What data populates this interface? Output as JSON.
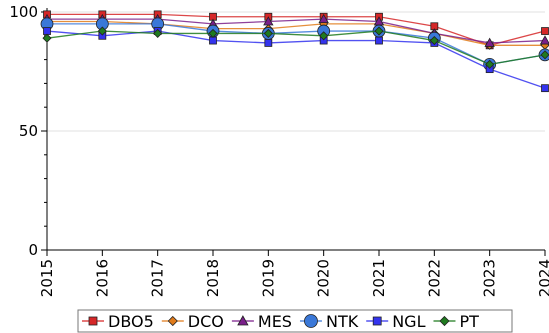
{
  "chart_data": {
    "type": "line",
    "title": "",
    "xlabel": "",
    "ylabel": "",
    "x": [
      "2015",
      "2016",
      "2017",
      "2018",
      "2019",
      "2020",
      "2021",
      "2022",
      "2023",
      "2024"
    ],
    "ylim": [
      0,
      100
    ],
    "yticks": [
      0,
      50,
      100
    ],
    "grid": "horizontal",
    "legend_position": "bottom",
    "series": [
      {
        "name": "DBO5",
        "marker": "square",
        "color": "#d62728",
        "values": [
          99,
          99,
          99,
          98,
          98,
          98,
          98,
          94,
          86,
          92
        ]
      },
      {
        "name": "DCO",
        "marker": "diamond",
        "color": "#e07b1a",
        "values": [
          96,
          96,
          95,
          93,
          93,
          95,
          95,
          91,
          86,
          86
        ]
      },
      {
        "name": "MES",
        "marker": "triangle",
        "color": "#7a1f8a",
        "values": [
          97,
          97,
          97,
          95,
          96,
          97,
          96,
          91,
          87,
          88
        ]
      },
      {
        "name": "NTK",
        "marker": "circle",
        "color": "#3a78d8",
        "values": [
          95,
          95,
          95,
          92,
          91,
          92,
          92,
          89,
          78,
          82
        ]
      },
      {
        "name": "NGL",
        "marker": "square",
        "color": "#3333ee",
        "values": [
          92,
          90,
          92,
          88,
          87,
          88,
          88,
          87,
          76,
          68
        ]
      },
      {
        "name": "PT",
        "marker": "diamond",
        "color": "#1f7a1f",
        "values": [
          89,
          92,
          91,
          91,
          91,
          90,
          92,
          88,
          78,
          82
        ]
      }
    ]
  }
}
